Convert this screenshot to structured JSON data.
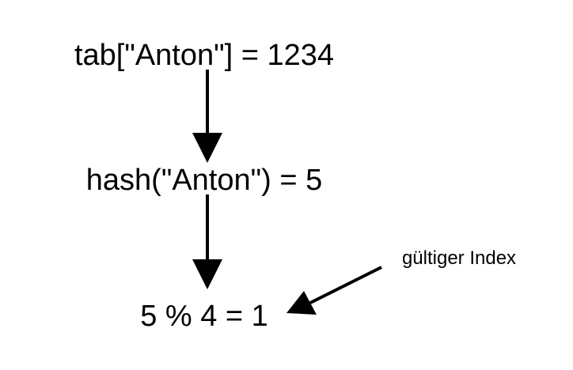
{
  "diagram": {
    "step_assignment": "tab[\"Anton\"] = 1234",
    "step_hash": "hash(\"Anton\") = 5",
    "step_modulo": "5 % 4 = 1",
    "annotation": "gültiger Index"
  },
  "colors": {
    "stroke": "#000000",
    "background": "#ffffff"
  }
}
